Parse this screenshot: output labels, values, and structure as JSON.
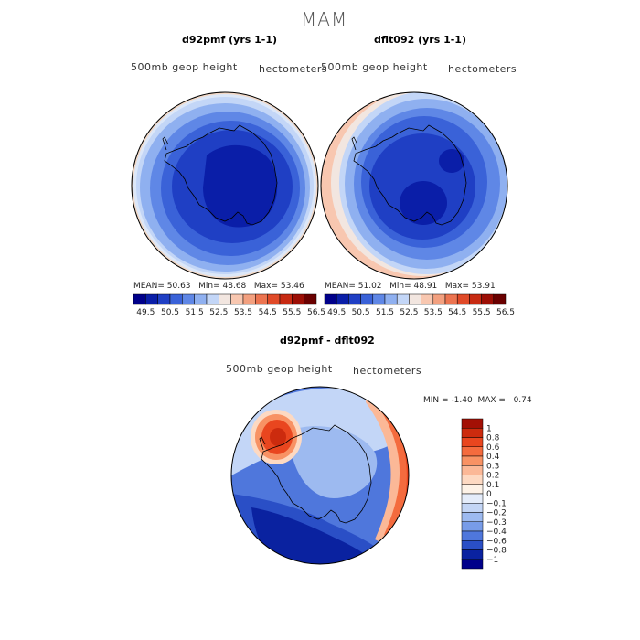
{
  "title": "MAM",
  "panels": [
    {
      "id": "left",
      "title": "d92pmf (yrs 1-1)",
      "variable": "500mb geop height",
      "units": "hectometers",
      "stats": {
        "mean_label": "MEAN=",
        "mean": "50.63",
        "min_label": "Min=",
        "min": "48.68",
        "max_label": "Max=",
        "max": "53.46"
      }
    },
    {
      "id": "right",
      "title": "dflt092 (yrs 1-1)",
      "variable": "500mb geop height",
      "units": "hectometers",
      "stats": {
        "mean_label": "MEAN=",
        "mean": "51.02",
        "min_label": "Min=",
        "min": "48.91",
        "max_label": "Max=",
        "max": "53.91"
      }
    }
  ],
  "diff_panel": {
    "title": "d92pmf - dflt092",
    "variable": "500mb geop height",
    "units": "hectometers",
    "min_label": "MIN =",
    "min": "-1.40",
    "max_label": "MAX =",
    "max": "0.74"
  },
  "chart_data": [
    {
      "type": "heatmap",
      "projection": "south-polar-stereographic",
      "title": "d92pmf (yrs 1-1)",
      "field": "500mb geop height",
      "units": "hectometers",
      "mean": 50.63,
      "min": 48.68,
      "max": 53.46,
      "colorbar_ticks": [
        "49.5",
        "50.5",
        "51.5",
        "52.5",
        "53.5",
        "54.5",
        "55.5",
        "56.5"
      ],
      "colorbar_colors": [
        "#00008a",
        "#0a1ea8",
        "#1f3fc4",
        "#3a62d8",
        "#5f87e6",
        "#8fb0f0",
        "#c3d6f7",
        "#f2e6e0",
        "#f8c7b0",
        "#f3a07f",
        "#ec7450",
        "#e04a28",
        "#c72a12",
        "#9c0e05",
        "#6a0000"
      ]
    },
    {
      "type": "heatmap",
      "projection": "south-polar-stereographic",
      "title": "dflt092 (yrs 1-1)",
      "field": "500mb geop height",
      "units": "hectometers",
      "mean": 51.02,
      "min": 48.91,
      "max": 53.91,
      "colorbar_ticks": [
        "49.5",
        "50.5",
        "51.5",
        "52.5",
        "53.5",
        "54.5",
        "55.5",
        "56.5"
      ],
      "colorbar_colors": [
        "#00008a",
        "#0a1ea8",
        "#1f3fc4",
        "#3a62d8",
        "#5f87e6",
        "#8fb0f0",
        "#c3d6f7",
        "#f2e6e0",
        "#f8c7b0",
        "#f3a07f",
        "#ec7450",
        "#e04a28",
        "#c72a12",
        "#9c0e05",
        "#6a0000"
      ]
    },
    {
      "type": "heatmap",
      "projection": "south-polar-stereographic",
      "title": "d92pmf - dflt092",
      "field": "500mb geop height",
      "units": "hectometers",
      "min": -1.4,
      "max": 0.74,
      "colorbar_ticks": [
        "1",
        "0.8",
        "0.6",
        "0.4",
        "0.3",
        "0.2",
        "0.1",
        "0",
        "−0.1",
        "−0.2",
        "−0.3",
        "−0.4",
        "−0.6",
        "−0.8",
        "−1"
      ],
      "colorbar_colors": [
        "#a31005",
        "#cc2b0e",
        "#e9461f",
        "#f46b3e",
        "#f89264",
        "#fbb897",
        "#fdd9c2",
        "#fdf2e7",
        "#e4ecfa",
        "#c3d5f5",
        "#9dbaf0",
        "#789ce8",
        "#4f77dc",
        "#2a4fc6",
        "#0a22a0",
        "#00008a"
      ]
    }
  ]
}
